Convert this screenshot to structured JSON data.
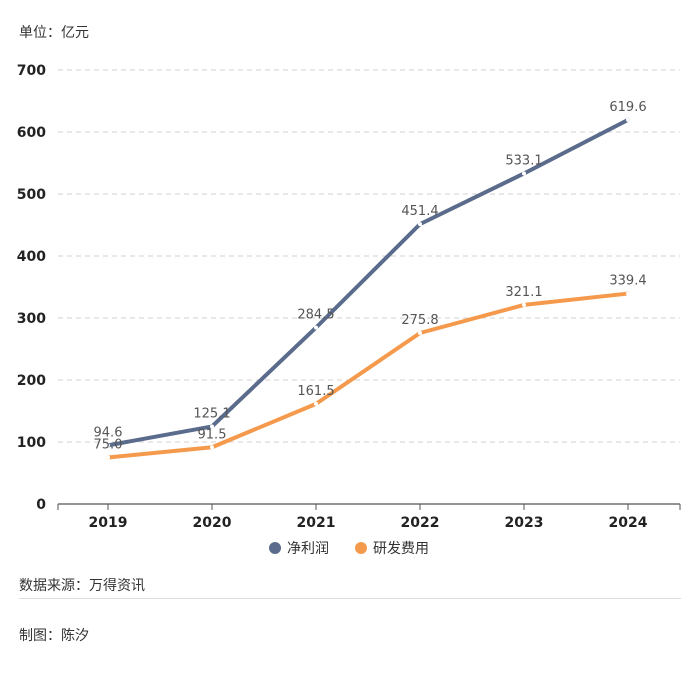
{
  "unit_label": "单位：亿元",
  "source": "数据来源：万得资讯",
  "author": "制图：陈汐",
  "chart_data": {
    "type": "line",
    "title": "",
    "xlabel": "",
    "ylabel": "单位：亿元",
    "categories": [
      "2019",
      "2020",
      "2021",
      "2022",
      "2023",
      "2024"
    ],
    "ylim": [
      0,
      700
    ],
    "yticks": [
      0,
      100,
      200,
      300,
      400,
      500,
      600,
      700
    ],
    "grid": true,
    "legend": "bottom-center",
    "series": [
      {
        "name": "净利润",
        "color": "#5a6b8c",
        "values": [
          94.6,
          125.1,
          284.5,
          451.4,
          533.1,
          619.6
        ],
        "labels": [
          "94.6",
          "125.1",
          "284.5",
          "451.4",
          "533.1",
          "619.6"
        ]
      },
      {
        "name": "研发费用",
        "color": "#f59a4d",
        "values": [
          75.0,
          91.5,
          161.5,
          275.8,
          321.1,
          339.4
        ],
        "labels": [
          "75.0",
          "91.5",
          "161.5",
          "275.8",
          "321.1",
          "339.4"
        ]
      }
    ]
  }
}
